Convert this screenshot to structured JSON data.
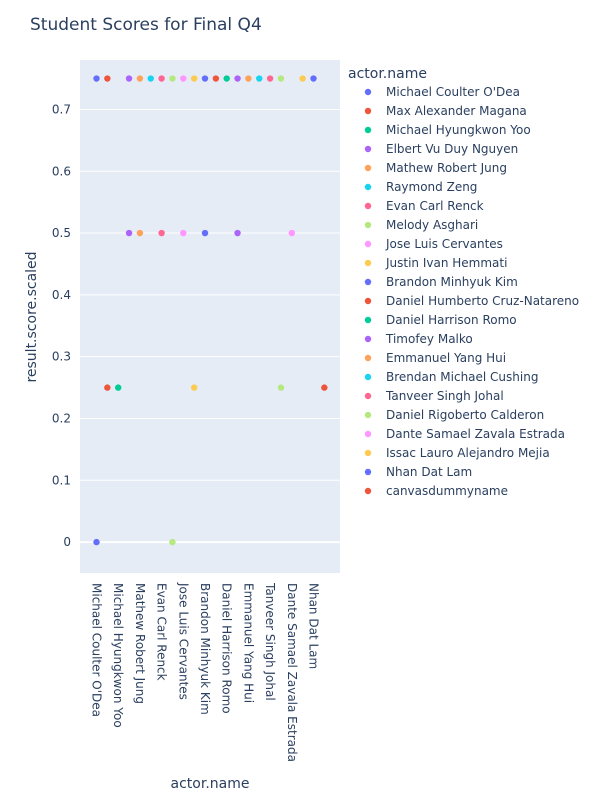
{
  "chart_data": {
    "type": "scatter",
    "title": "Student Scores for Final Q4",
    "xlabel": "actor.name",
    "ylabel": "result.score.scaled",
    "ylim": [
      -0.05,
      0.78
    ],
    "yticks": [
      0,
      0.1,
      0.2,
      0.3,
      0.4,
      0.5,
      0.6,
      0.7
    ],
    "ytick_labels": [
      "0",
      "0.1",
      "0.2",
      "0.3",
      "0.4",
      "0.5",
      "0.6",
      "0.7"
    ],
    "grid": true,
    "legend": {
      "title": "actor.name",
      "placement": "right"
    },
    "categories": [
      "Michael Coulter O'Dea",
      "Max Alexander Magana",
      "Michael Hyungkwon Yoo",
      "Elbert Vu Duy Nguyen",
      "Mathew Robert Jung",
      "Raymond Zeng",
      "Evan Carl Renck",
      "Melody Asghari",
      "Jose Luis Cervantes",
      "Justin Ivan Hemmati",
      "Brandon Minhyuk Kim",
      "Daniel Humberto Cruz-Natareno",
      "Daniel Harrison Romo",
      "Timofey Malko",
      "Emmanuel Yang Hui",
      "Brendan Michael Cushing",
      "Tanveer Singh Johal",
      "Daniel Rigoberto Calderon",
      "Dante Samael Zavala Estrada",
      "Issac Lauro Alejandro Mejia",
      "Nhan Dat Lam",
      "canvasdummyname"
    ],
    "x_tick_labels": [
      "Michael Coulter O'Dea",
      "Michael Hyungkwon Yoo",
      "Mathew Robert Jung",
      "Evan Carl Renck",
      "Jose Luis Cervantes",
      "Brandon Minhyuk Kim",
      "Daniel Harrison Romo",
      "Emmanuel Yang Hui",
      "Tanveer Singh Johal",
      "Dante Samael Zavala Estrada",
      "Nhan Dat Lam"
    ],
    "series": [
      {
        "name": "Michael Coulter O'Dea",
        "color": "#636efa",
        "values": [
          0.75,
          0
        ]
      },
      {
        "name": "Max Alexander Magana",
        "color": "#EF553B",
        "values": [
          0.75,
          0.25
        ]
      },
      {
        "name": "Michael Hyungkwon Yoo",
        "color": "#00cc96",
        "values": [
          0.25
        ]
      },
      {
        "name": "Elbert Vu Duy Nguyen",
        "color": "#ab63fa",
        "values": [
          0.75,
          0.5
        ]
      },
      {
        "name": "Mathew Robert Jung",
        "color": "#FFA15A",
        "values": [
          0.75,
          0.5
        ]
      },
      {
        "name": "Raymond Zeng",
        "color": "#19d3f3",
        "values": [
          0.75
        ]
      },
      {
        "name": "Evan Carl Renck",
        "color": "#FF6692",
        "values": [
          0.75,
          0.5
        ]
      },
      {
        "name": "Melody Asghari",
        "color": "#B6E880",
        "values": [
          0.75,
          0
        ]
      },
      {
        "name": "Jose Luis Cervantes",
        "color": "#FF97FF",
        "values": [
          0.75,
          0.5
        ]
      },
      {
        "name": "Justin Ivan Hemmati",
        "color": "#FECB52",
        "values": [
          0.75,
          0.25
        ]
      },
      {
        "name": "Brandon Minhyuk Kim",
        "color": "#636efa",
        "values": [
          0.75,
          0.5
        ]
      },
      {
        "name": "Daniel Humberto Cruz-Natareno",
        "color": "#EF553B",
        "values": [
          0.75
        ]
      },
      {
        "name": "Daniel Harrison Romo",
        "color": "#00cc96",
        "values": [
          0.75
        ]
      },
      {
        "name": "Timofey Malko",
        "color": "#ab63fa",
        "values": [
          0.75,
          0.5
        ]
      },
      {
        "name": "Emmanuel Yang Hui",
        "color": "#FFA15A",
        "values": [
          0.75
        ]
      },
      {
        "name": "Brendan Michael Cushing",
        "color": "#19d3f3",
        "values": [
          0.75
        ]
      },
      {
        "name": "Tanveer Singh Johal",
        "color": "#FF6692",
        "values": [
          0.75
        ]
      },
      {
        "name": "Daniel Rigoberto Calderon",
        "color": "#B6E880",
        "values": [
          0.75,
          0.25
        ]
      },
      {
        "name": "Dante Samael Zavala Estrada",
        "color": "#FF97FF",
        "values": [
          0.5
        ]
      },
      {
        "name": "Issac Lauro Alejandro Mejia",
        "color": "#FECB52",
        "values": [
          0.75
        ]
      },
      {
        "name": "Nhan Dat Lam",
        "color": "#636efa",
        "values": [
          0.75
        ]
      },
      {
        "name": "canvasdummyname",
        "color": "#EF553B",
        "values": [
          0.25
        ]
      }
    ]
  }
}
